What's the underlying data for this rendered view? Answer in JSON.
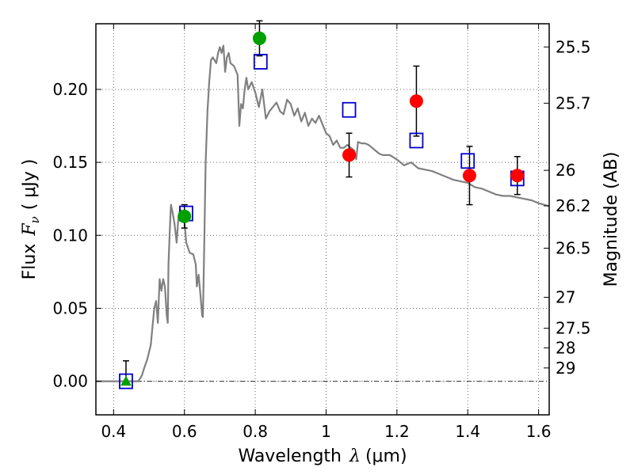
{
  "chart_data": {
    "type": "scatter",
    "xlabel": {
      "text": "Wavelength",
      "symbol": "λ",
      "unit": "(μm)"
    },
    "ylabel": {
      "text": "Flux",
      "symbol": "F",
      "subscript": "ν",
      "unit": "( μJy )"
    },
    "y2label": "Magnitude (AB)",
    "xlim": [
      0.35,
      1.63
    ],
    "ylim": [
      -0.023,
      0.245
    ],
    "x_ticks": [
      {
        "value": 0.4,
        "label": "0.4"
      },
      {
        "value": 0.6,
        "label": "0.6"
      },
      {
        "value": 0.8,
        "label": "0.8"
      },
      {
        "value": 1.0,
        "label": "1"
      },
      {
        "value": 1.2,
        "label": "1.2"
      },
      {
        "value": 1.4,
        "label": "1.4"
      },
      {
        "value": 1.6,
        "label": "1.6"
      }
    ],
    "y_ticks": [
      {
        "value": 0.0,
        "label": "0.00"
      },
      {
        "value": 0.05,
        "label": "0.05"
      },
      {
        "value": 0.1,
        "label": "0.10"
      },
      {
        "value": 0.15,
        "label": "0.15"
      },
      {
        "value": 0.2,
        "label": "0.20"
      }
    ],
    "mag_ticks": [
      {
        "value": 25.5,
        "label": "25.5"
      },
      {
        "value": 25.7,
        "label": "25.7"
      },
      {
        "value": 26.0,
        "label": "26"
      },
      {
        "value": 26.2,
        "label": "26.2"
      },
      {
        "value": 26.5,
        "label": "26.5"
      },
      {
        "value": 27.0,
        "label": "27"
      },
      {
        "value": 27.5,
        "label": "27.5"
      },
      {
        "value": 28.0,
        "label": "28"
      },
      {
        "value": 29.0,
        "label": "29"
      }
    ],
    "grid": true,
    "zero_line": 0.0,
    "colors": {
      "model": "#808080",
      "green": "#00a000",
      "red": "#ff0000",
      "blue": "#0000cc",
      "error": "#000000",
      "grid": "#666666"
    },
    "model_spectrum": [
      [
        0.35,
        0.0
      ],
      [
        0.47,
        0.0
      ],
      [
        0.48,
        0.004
      ],
      [
        0.485,
        0.008
      ],
      [
        0.495,
        0.015
      ],
      [
        0.505,
        0.025
      ],
      [
        0.51,
        0.038
      ],
      [
        0.515,
        0.05
      ],
      [
        0.52,
        0.055
      ],
      [
        0.525,
        0.04
      ],
      [
        0.53,
        0.07
      ],
      [
        0.535,
        0.062
      ],
      [
        0.54,
        0.07
      ],
      [
        0.545,
        0.065
      ],
      [
        0.55,
        0.045
      ],
      [
        0.553,
        0.04
      ],
      [
        0.555,
        0.08
      ],
      [
        0.558,
        0.1
      ],
      [
        0.562,
        0.121
      ],
      [
        0.567,
        0.115
      ],
      [
        0.572,
        0.108
      ],
      [
        0.578,
        0.095
      ],
      [
        0.583,
        0.112
      ],
      [
        0.588,
        0.118
      ],
      [
        0.595,
        0.114
      ],
      [
        0.6,
        0.11
      ],
      [
        0.605,
        0.095
      ],
      [
        0.615,
        0.088
      ],
      [
        0.625,
        0.087
      ],
      [
        0.632,
        0.08
      ],
      [
        0.635,
        0.065
      ],
      [
        0.64,
        0.073
      ],
      [
        0.645,
        0.06
      ],
      [
        0.65,
        0.045
      ],
      [
        0.652,
        0.044
      ],
      [
        0.655,
        0.08
      ],
      [
        0.66,
        0.15
      ],
      [
        0.665,
        0.185
      ],
      [
        0.67,
        0.205
      ],
      [
        0.675,
        0.22
      ],
      [
        0.68,
        0.222
      ],
      [
        0.69,
        0.218
      ],
      [
        0.695,
        0.225
      ],
      [
        0.7,
        0.229
      ],
      [
        0.705,
        0.225
      ],
      [
        0.71,
        0.23
      ],
      [
        0.715,
        0.212
      ],
      [
        0.72,
        0.222
      ],
      [
        0.725,
        0.225
      ],
      [
        0.73,
        0.218
      ],
      [
        0.74,
        0.216
      ],
      [
        0.75,
        0.21
      ],
      [
        0.755,
        0.175
      ],
      [
        0.76,
        0.19
      ],
      [
        0.765,
        0.187
      ],
      [
        0.77,
        0.2
      ],
      [
        0.775,
        0.208
      ],
      [
        0.78,
        0.2
      ],
      [
        0.79,
        0.205
      ],
      [
        0.8,
        0.198
      ],
      [
        0.81,
        0.188
      ],
      [
        0.82,
        0.2
      ],
      [
        0.83,
        0.18
      ],
      [
        0.84,
        0.185
      ],
      [
        0.85,
        0.188
      ],
      [
        0.86,
        0.191
      ],
      [
        0.87,
        0.185
      ],
      [
        0.88,
        0.183
      ],
      [
        0.89,
        0.193
      ],
      [
        0.9,
        0.19
      ],
      [
        0.91,
        0.182
      ],
      [
        0.92,
        0.187
      ],
      [
        0.93,
        0.178
      ],
      [
        0.94,
        0.184
      ],
      [
        0.95,
        0.175
      ],
      [
        0.96,
        0.18
      ],
      [
        0.97,
        0.177
      ],
      [
        0.98,
        0.182
      ],
      [
        0.99,
        0.176
      ],
      [
        1.0,
        0.17
      ],
      [
        1.01,
        0.168
      ],
      [
        1.02,
        0.162
      ],
      [
        1.03,
        0.165
      ],
      [
        1.04,
        0.16
      ],
      [
        1.05,
        0.16
      ],
      [
        1.06,
        0.162
      ],
      [
        1.07,
        0.16
      ],
      [
        1.08,
        0.158
      ],
      [
        1.085,
        0.152
      ],
      [
        1.09,
        0.164
      ],
      [
        1.1,
        0.163
      ],
      [
        1.11,
        0.163
      ],
      [
        1.12,
        0.162
      ],
      [
        1.13,
        0.16
      ],
      [
        1.14,
        0.158
      ],
      [
        1.15,
        0.156
      ],
      [
        1.16,
        0.155
      ],
      [
        1.18,
        0.155
      ],
      [
        1.2,
        0.152
      ],
      [
        1.22,
        0.148
      ],
      [
        1.24,
        0.15
      ],
      [
        1.26,
        0.146
      ],
      [
        1.28,
        0.145
      ],
      [
        1.3,
        0.144
      ],
      [
        1.32,
        0.142
      ],
      [
        1.34,
        0.14
      ],
      [
        1.36,
        0.138
      ],
      [
        1.38,
        0.137
      ],
      [
        1.4,
        0.136
      ],
      [
        1.42,
        0.133
      ],
      [
        1.44,
        0.132
      ],
      [
        1.46,
        0.13
      ],
      [
        1.48,
        0.128
      ],
      [
        1.5,
        0.127
      ],
      [
        1.52,
        0.127
      ],
      [
        1.54,
        0.126
      ],
      [
        1.56,
        0.125
      ],
      [
        1.58,
        0.124
      ],
      [
        1.6,
        0.122
      ],
      [
        1.63,
        0.12
      ]
    ],
    "series": [
      {
        "name": "green",
        "marker": "circle",
        "points": [
          {
            "x": 0.6,
            "y": 0.113,
            "err": 0.008
          },
          {
            "x": 0.812,
            "y": 0.235,
            "err": 0.012
          }
        ]
      },
      {
        "name": "green-upper-limit",
        "marker": "triangle",
        "points": [
          {
            "x": 0.435,
            "y": 0.0,
            "err_up": 0.014
          }
        ]
      },
      {
        "name": "red",
        "marker": "circle",
        "points": [
          {
            "x": 1.065,
            "y": 0.155,
            "err": 0.015
          },
          {
            "x": 1.255,
            "y": 0.192,
            "err": 0.024
          },
          {
            "x": 1.405,
            "y": 0.141,
            "err": 0.02
          },
          {
            "x": 1.54,
            "y": 0.141,
            "err": 0.013
          }
        ]
      },
      {
        "name": "model-photometry",
        "marker": "square",
        "points": [
          {
            "x": 0.435,
            "y": 0.0
          },
          {
            "x": 0.605,
            "y": 0.115
          },
          {
            "x": 0.815,
            "y": 0.219
          },
          {
            "x": 1.065,
            "y": 0.186
          },
          {
            "x": 1.255,
            "y": 0.165
          },
          {
            "x": 1.4,
            "y": 0.151
          },
          {
            "x": 1.54,
            "y": 0.139
          }
        ]
      }
    ]
  }
}
